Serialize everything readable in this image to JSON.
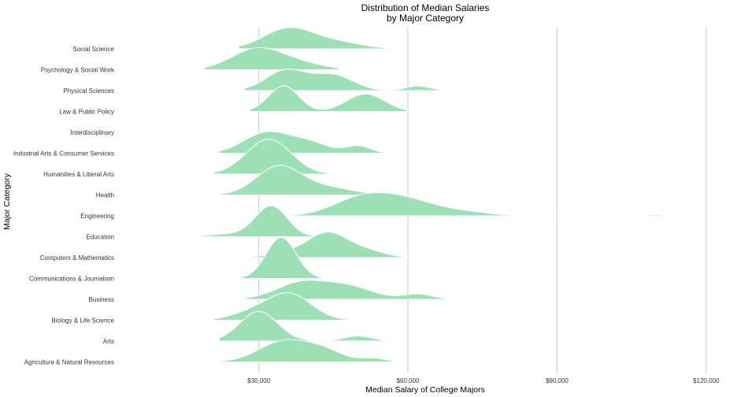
{
  "chart_data": {
    "type": "ridgeline",
    "title": [
      "Distribution of Median Salaries",
      "by Major Category"
    ],
    "xlabel": "Median Salary of College Majors",
    "ylabel": "Major Category",
    "xlim": [
      2000,
      124000
    ],
    "xticks": [
      30000,
      60000,
      90000,
      120000
    ],
    "xtick_labels": [
      "$30,000",
      "$60,000",
      "$90,000",
      "$120,000"
    ],
    "grid": "vertical",
    "fill_color": "#9de0b6",
    "categories_top_to_bottom": [
      "Social Science",
      "Psychology & Social Work",
      "Physical Sciences",
      "Law & Public Policy",
      "Interdisciplinary",
      "Industrial Arts & Consumer Services",
      "Humanities & Liberal Arts",
      "Health",
      "Engineering",
      "Education",
      "Computers & Mathematics",
      "Communications & Journalism",
      "Business",
      "Biology & Life Science",
      "Arts",
      "Agriculture & Natural Resources"
    ],
    "series": [
      {
        "category": "Social Science",
        "range": [
          26000,
          57000
        ],
        "peaks": [
          {
            "x": 36000,
            "h": 1.0,
            "w": 5000
          },
          {
            "x": 46000,
            "h": 0.3,
            "w": 5000
          }
        ]
      },
      {
        "category": "Psychology & Social Work",
        "range": [
          19000,
          46000
        ],
        "peaks": [
          {
            "x": 29500,
            "h": 1.0,
            "w": 5000
          },
          {
            "x": 38000,
            "h": 0.3,
            "w": 5000
          }
        ]
      },
      {
        "category": "Physical Sciences",
        "range": [
          27000,
          69000
        ],
        "peaks": [
          {
            "x": 35500,
            "h": 1.0,
            "w": 4000
          },
          {
            "x": 45000,
            "h": 0.75,
            "w": 4000
          },
          {
            "x": 62000,
            "h": 0.22,
            "w": 2500
          }
        ]
      },
      {
        "category": "Law & Public Policy",
        "range": [
          28000,
          60000
        ],
        "peaks": [
          {
            "x": 35000,
            "h": 1.25,
            "w": 3000
          },
          {
            "x": 51500,
            "h": 0.85,
            "w": 3800
          }
        ]
      },
      {
        "category": "Interdisciplinary",
        "range": [
          35000,
          35000
        ],
        "peaks": []
      },
      {
        "category": "Industrial Arts & Consumer Services",
        "range": [
          22000,
          58000
        ],
        "peaks": [
          {
            "x": 31500,
            "h": 1.0,
            "w": 4500
          },
          {
            "x": 40000,
            "h": 0.5,
            "w": 4000
          },
          {
            "x": 50000,
            "h": 0.35,
            "w": 2500
          }
        ]
      },
      {
        "category": "Humanities & Liberal Arts",
        "range": [
          21000,
          46000
        ],
        "peaks": [
          {
            "x": 32000,
            "h": 1.7,
            "w": 4500
          }
        ]
      },
      {
        "category": "Health",
        "range": [
          22000,
          55000
        ],
        "peaks": [
          {
            "x": 34000,
            "h": 1.4,
            "w": 4500
          },
          {
            "x": 44000,
            "h": 0.35,
            "w": 5000
          }
        ]
      },
      {
        "category": "Engineering",
        "range": [
          35000,
          116000
        ],
        "peaks": [
          {
            "x": 50000,
            "h": 0.7,
            "w": 5500
          },
          {
            "x": 59000,
            "h": 0.8,
            "w": 6500
          },
          {
            "x": 72000,
            "h": 0.15,
            "w": 5000
          },
          {
            "x": 110000,
            "h": 0.06,
            "w": 1800
          }
        ]
      },
      {
        "category": "Education",
        "range": [
          15000,
          46000
        ],
        "peaks": [
          {
            "x": 32500,
            "h": 1.5,
            "w": 3200
          },
          {
            "x": 24000,
            "h": 0.12,
            "w": 4000
          }
        ]
      },
      {
        "category": "Computers & Mathematics",
        "range": [
          28000,
          60000
        ],
        "peaks": [
          {
            "x": 44000,
            "h": 1.2,
            "w": 4000
          },
          {
            "x": 36000,
            "h": 0.22,
            "w": 4000
          },
          {
            "x": 52000,
            "h": 0.3,
            "w": 3500
          }
        ]
      },
      {
        "category": "Communications & Journalism",
        "range": [
          24000,
          45000
        ],
        "peaks": [
          {
            "x": 34500,
            "h": 2.0,
            "w": 3000
          }
        ]
      },
      {
        "category": "Business",
        "range": [
          27000,
          68000
        ],
        "peaks": [
          {
            "x": 38500,
            "h": 0.8,
            "w": 5000
          },
          {
            "x": 48000,
            "h": 0.6,
            "w": 5000
          },
          {
            "x": 62000,
            "h": 0.25,
            "w": 3000
          }
        ]
      },
      {
        "category": "Biology & Life Science",
        "range": [
          21000,
          52000
        ],
        "peaks": [
          {
            "x": 36000,
            "h": 1.3,
            "w": 4500
          },
          {
            "x": 28000,
            "h": 0.3,
            "w": 4000
          }
        ]
      },
      {
        "category": "Arts",
        "range": [
          22000,
          57000
        ],
        "peaks": [
          {
            "x": 30000,
            "h": 1.45,
            "w": 3800
          },
          {
            "x": 50000,
            "h": 0.25,
            "w": 2800
          }
        ]
      },
      {
        "category": "Agriculture & Natural Resources",
        "range": [
          22000,
          57000
        ],
        "peaks": [
          {
            "x": 35000,
            "h": 1.0,
            "w": 5000
          },
          {
            "x": 43000,
            "h": 0.5,
            "w": 4000
          },
          {
            "x": 53000,
            "h": 0.18,
            "w": 2500
          }
        ]
      }
    ]
  }
}
